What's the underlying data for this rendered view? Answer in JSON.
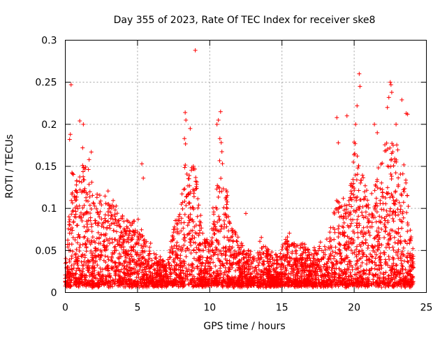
{
  "chart_data": {
    "type": "scatter",
    "title": "Day 355 of 2023, Rate Of TEC Index for receiver ske8",
    "xlabel": "GPS time / hours",
    "ylabel": "ROTI / TECUs",
    "xlim": [
      0,
      25
    ],
    "ylim": [
      0,
      0.3
    ],
    "x_ticks": [
      "0",
      "5",
      "10",
      "15",
      "20",
      "25"
    ],
    "y_ticks": [
      "0",
      "0.05",
      "0.1",
      "0.15",
      "0.2",
      "0.25",
      "0.3"
    ],
    "grid": true,
    "marker": "plus",
    "color": "#ff0000",
    "envelope": [
      [
        0.0,
        0.06
      ],
      [
        0.3,
        0.1
      ],
      [
        0.5,
        0.15
      ],
      [
        0.9,
        0.13
      ],
      [
        1.2,
        0.15
      ],
      [
        1.6,
        0.16
      ],
      [
        2.0,
        0.12
      ],
      [
        2.5,
        0.11
      ],
      [
        3.0,
        0.12
      ],
      [
        3.5,
        0.1
      ],
      [
        4.0,
        0.09
      ],
      [
        4.5,
        0.08
      ],
      [
        5.0,
        0.09
      ],
      [
        5.5,
        0.07
      ],
      [
        6.0,
        0.05
      ],
      [
        6.5,
        0.04
      ],
      [
        7.0,
        0.03
      ],
      [
        7.5,
        0.08
      ],
      [
        8.0,
        0.1
      ],
      [
        8.3,
        0.18
      ],
      [
        8.6,
        0.14
      ],
      [
        9.0,
        0.15
      ],
      [
        9.5,
        0.07
      ],
      [
        10.0,
        0.06
      ],
      [
        10.5,
        0.14
      ],
      [
        10.8,
        0.18
      ],
      [
        11.2,
        0.12
      ],
      [
        11.6,
        0.08
      ],
      [
        12.0,
        0.06
      ],
      [
        12.5,
        0.05
      ],
      [
        13.0,
        0.04
      ],
      [
        13.5,
        0.07
      ],
      [
        14.0,
        0.05
      ],
      [
        14.5,
        0.04
      ],
      [
        15.0,
        0.05
      ],
      [
        15.5,
        0.07
      ],
      [
        16.0,
        0.05
      ],
      [
        16.5,
        0.06
      ],
      [
        17.0,
        0.04
      ],
      [
        17.5,
        0.06
      ],
      [
        18.0,
        0.05
      ],
      [
        18.5,
        0.09
      ],
      [
        19.0,
        0.12
      ],
      [
        19.5,
        0.1
      ],
      [
        20.0,
        0.18
      ],
      [
        20.5,
        0.14
      ],
      [
        21.0,
        0.12
      ],
      [
        21.5,
        0.13
      ],
      [
        22.0,
        0.17
      ],
      [
        22.5,
        0.19
      ],
      [
        22.8,
        0.18
      ],
      [
        23.2,
        0.16
      ],
      [
        23.6,
        0.14
      ],
      [
        24.0,
        0.05
      ]
    ],
    "outliers": [
      [
        0.3,
        0.182
      ],
      [
        0.35,
        0.188
      ],
      [
        0.4,
        0.247
      ],
      [
        1.0,
        0.204
      ],
      [
        1.25,
        0.2
      ],
      [
        1.2,
        0.172
      ],
      [
        1.8,
        0.167
      ],
      [
        5.3,
        0.153
      ],
      [
        5.4,
        0.136
      ],
      [
        8.3,
        0.214
      ],
      [
        8.35,
        0.205
      ],
      [
        8.25,
        0.183
      ],
      [
        8.65,
        0.195
      ],
      [
        9.0,
        0.288
      ],
      [
        10.5,
        0.2
      ],
      [
        10.6,
        0.205
      ],
      [
        10.75,
        0.215
      ],
      [
        10.7,
        0.183
      ],
      [
        11.2,
        0.1
      ],
      [
        12.5,
        0.094
      ],
      [
        18.8,
        0.208
      ],
      [
        18.9,
        0.178
      ],
      [
        19.5,
        0.21
      ],
      [
        20.1,
        0.2
      ],
      [
        20.2,
        0.222
      ],
      [
        20.35,
        0.26
      ],
      [
        20.4,
        0.245
      ],
      [
        21.4,
        0.2
      ],
      [
        21.6,
        0.19
      ],
      [
        22.3,
        0.22
      ],
      [
        22.4,
        0.232
      ],
      [
        22.5,
        0.25
      ],
      [
        22.6,
        0.238
      ],
      [
        22.55,
        0.247
      ],
      [
        22.9,
        0.2
      ],
      [
        23.3,
        0.229
      ],
      [
        23.6,
        0.213
      ],
      [
        23.7,
        0.212
      ]
    ]
  }
}
